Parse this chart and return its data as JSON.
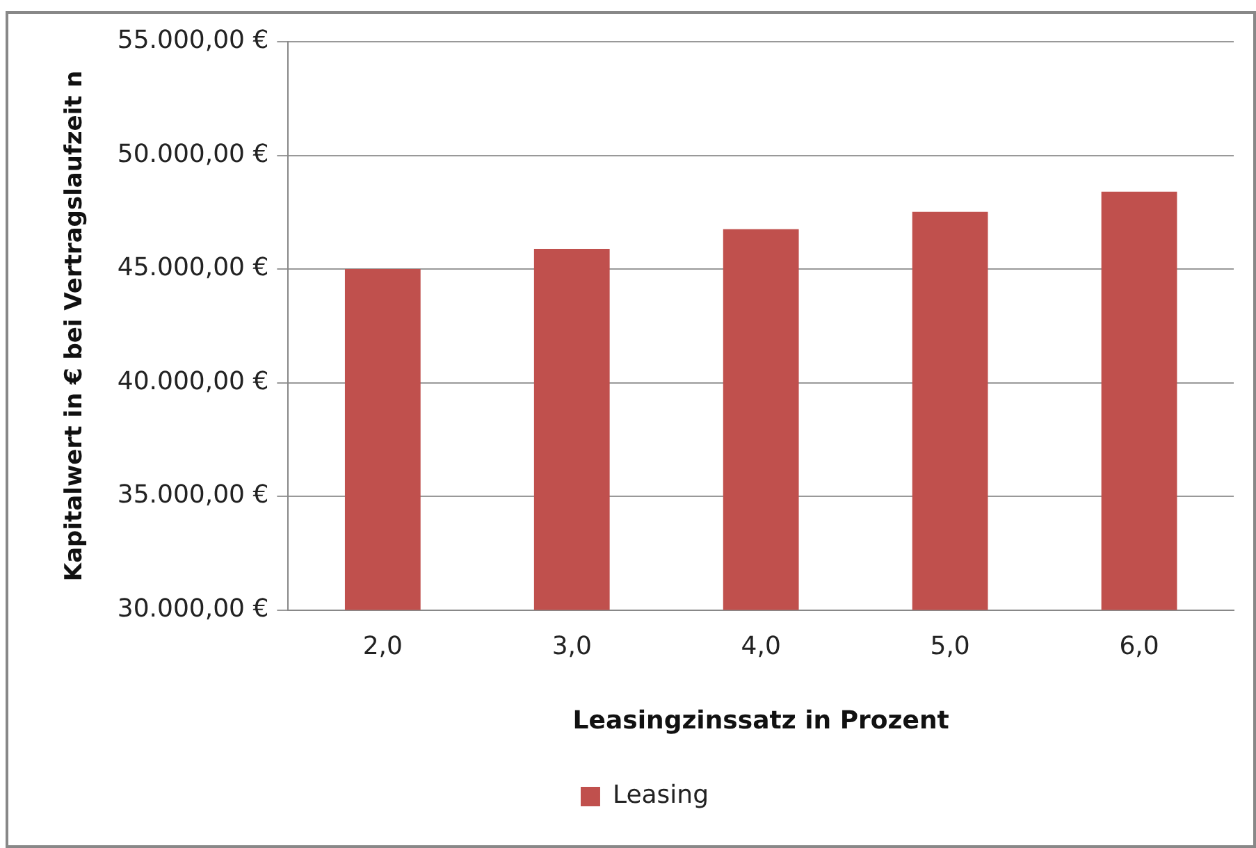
{
  "chart_data": {
    "type": "bar",
    "xlabel": "Leasingzinssatz in Prozent",
    "ylabel": "Kapitalwert in € bei Vertragslaufzeit n",
    "categories": [
      "2,0",
      "3,0",
      "4,0",
      "5,0",
      "6,0"
    ],
    "series": [
      {
        "name": "Leasing",
        "color": "#c0504d",
        "values": [
          45000,
          45890,
          46750,
          47520,
          48400
        ]
      }
    ],
    "ylim": [
      30000,
      55000
    ],
    "yticks": [
      {
        "value": 30000,
        "label": "30.000,00 €"
      },
      {
        "value": 35000,
        "label": "35.000,00 €"
      },
      {
        "value": 40000,
        "label": "40.000,00 €"
      },
      {
        "value": 45000,
        "label": "45.000,00 €"
      },
      {
        "value": 50000,
        "label": "50.000,00 €"
      },
      {
        "value": 55000,
        "label": "55.000,00 €"
      }
    ],
    "grid": "y",
    "legend": "bottom"
  }
}
